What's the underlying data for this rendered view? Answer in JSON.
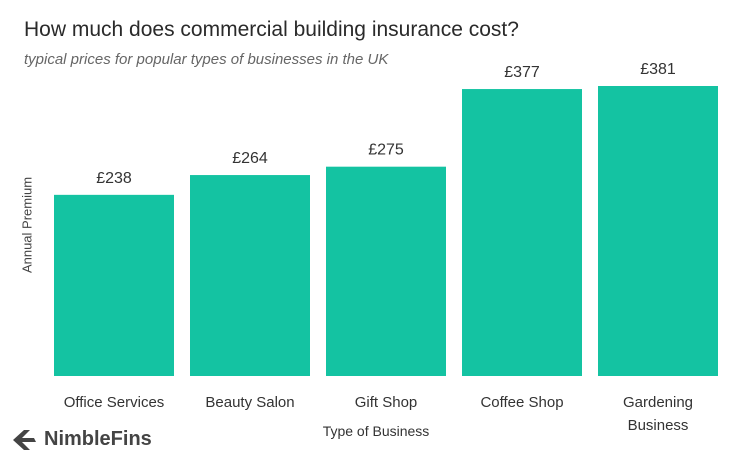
{
  "chart_data": {
    "type": "bar",
    "title": "How much does commercial building insurance cost?",
    "subtitle": "typical prices for popular types of businesses in the UK",
    "xlabel": "Type of Business",
    "ylabel": "Annual Premium",
    "categories": [
      "Office Services",
      "Beauty Salon",
      "Gift Shop",
      "Coffee Shop",
      "Gardening Business"
    ],
    "values": [
      238,
      264,
      275,
      377,
      381
    ],
    "data_labels": [
      "£238",
      "£264",
      "£275",
      "£377",
      "£381"
    ],
    "ylim": [
      0,
      381
    ],
    "grid": false,
    "bar_color": "#14c3a2"
  },
  "logo": {
    "text": "NimbleFins",
    "icon": "chevron-left-icon"
  }
}
